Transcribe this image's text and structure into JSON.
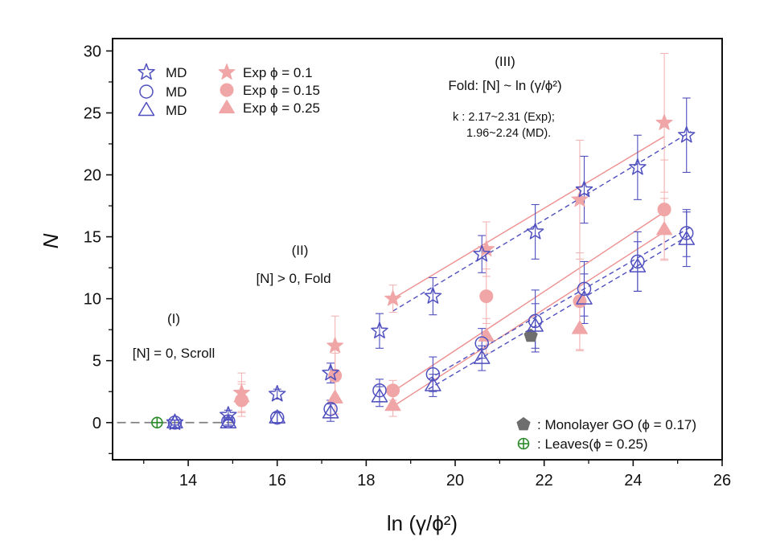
{
  "chart_data": {
    "type": "scatter",
    "xlabel": "ln (γ/ϕ²)",
    "ylabel": "N",
    "xlim": [
      12.3,
      26
    ],
    "ylim": [
      -3,
      31
    ],
    "xticks": [
      14,
      16,
      18,
      20,
      22,
      24,
      26
    ],
    "yticks": [
      0,
      5,
      10,
      15,
      20,
      25,
      30
    ],
    "colors": {
      "md": "#4f4fbf",
      "exp": "#f0a6a6",
      "go": "#6e6e6e",
      "leaves": "#2a8a2a",
      "zero": "#808080"
    },
    "legend_position": "top-left",
    "legend": {
      "md_star": "MD",
      "md_circle": "MD",
      "md_triangle": "MD",
      "exp_star": "Exp  ϕ = 0.1",
      "exp_circle": "Exp  ϕ = 0.15",
      "exp_triangle": "Exp  ϕ = 0.25",
      "monolayer": ": Monolayer GO (ϕ = 0.17)",
      "leaves": ": Leaves(ϕ = 0.25)"
    },
    "annotations": {
      "region1_title": "(I)",
      "region1_text": "[N] = 0, Scroll",
      "region2_title": "(II)",
      "region2_text": "[N] > 0, Fold",
      "region3_title": "(III)",
      "region3_text": "Fold: [N] ~ ln (γ/ϕ²)",
      "k_line1": "k : 2.17~2.31 (Exp);",
      "k_line2": "1.96~2.24 (MD)."
    },
    "series": [
      {
        "name": "MD star",
        "marker": "star",
        "filled": false,
        "x": [
          13.7,
          14.9,
          16.0,
          17.2,
          18.3,
          19.5,
          20.6,
          21.8,
          22.9,
          24.1,
          25.2
        ],
        "y": [
          0.0,
          0.6,
          2.3,
          4.0,
          7.4,
          10.2,
          13.6,
          15.4,
          18.8,
          20.6,
          23.2
        ],
        "err": [
          0.2,
          0.4,
          0.4,
          0.8,
          1.4,
          1.5,
          1.5,
          2.2,
          2.7,
          2.6,
          3.0
        ]
      },
      {
        "name": "MD circle",
        "marker": "circle",
        "filled": false,
        "x": [
          13.7,
          14.9,
          16.0,
          17.2,
          18.3,
          19.5,
          20.6,
          21.8,
          22.9,
          24.1,
          25.2
        ],
        "y": [
          0.0,
          0.1,
          0.4,
          1.1,
          2.6,
          3.9,
          6.4,
          8.2,
          10.8,
          13.0,
          15.3
        ],
        "err": [
          0.2,
          0.3,
          0.4,
          0.7,
          0.9,
          1.4,
          1.2,
          2.5,
          2.2,
          2.4,
          1.9
        ]
      },
      {
        "name": "MD triangle",
        "marker": "triangle",
        "filled": false,
        "x": [
          13.7,
          14.9,
          16.0,
          17.2,
          18.3,
          19.5,
          20.6,
          21.8,
          22.9,
          24.1,
          25.2
        ],
        "y": [
          0.0,
          0.0,
          0.4,
          0.8,
          2.1,
          3.0,
          5.2,
          7.8,
          10.0,
          12.6,
          14.8
        ],
        "err": [
          0.2,
          0.3,
          0.4,
          0.7,
          0.8,
          0.9,
          1.0,
          1.8,
          2.0,
          2.0,
          2.2
        ]
      },
      {
        "name": "Exp ϕ = 0.1",
        "marker": "star",
        "filled": true,
        "x": [
          15.2,
          17.3,
          18.6,
          20.7,
          22.8,
          24.7
        ],
        "y": [
          2.4,
          6.2,
          10.0,
          14.0,
          18.0,
          24.2
        ],
        "err": [
          1.6,
          2.4,
          1.1,
          2.2,
          4.8,
          5.6
        ]
      },
      {
        "name": "Exp ϕ = 0.15",
        "marker": "circle",
        "filled": true,
        "x": [
          15.2,
          17.3,
          18.6,
          20.7,
          22.8,
          24.7
        ],
        "y": [
          1.8,
          3.8,
          2.6,
          10.2,
          9.8,
          17.2
        ],
        "err": [
          1.3,
          1.8,
          0.8,
          2.2,
          3.9,
          4.0
        ]
      },
      {
        "name": "Exp ϕ = 0.25",
        "marker": "triangle",
        "filled": true,
        "x": [
          15.2,
          17.3,
          18.6,
          20.7,
          22.8,
          24.7
        ],
        "y": [
          2.1,
          2.0,
          1.4,
          7.0,
          7.6,
          15.6
        ],
        "err": [
          1.2,
          1.3,
          0.9,
          1.4,
          1.8,
          2.5
        ]
      },
      {
        "name": "Monolayer GO",
        "marker": "pentagon",
        "filled": true,
        "x": [
          21.7
        ],
        "y": [
          7.0
        ],
        "err": [
          0
        ]
      },
      {
        "name": "Leaves",
        "marker": "crosscircle",
        "filled": false,
        "x": [
          13.3
        ],
        "y": [
          0.0
        ],
        "err": [
          0
        ]
      }
    ],
    "fit_lines": [
      {
        "name": "Exp ϕ = 0.1 fit",
        "style": "solid",
        "x": [
          18.6,
          24.7
        ],
        "y": [
          10.0,
          23.1
        ]
      },
      {
        "name": "Exp ϕ = 0.15 fit",
        "style": "solid",
        "x": [
          18.6,
          24.7
        ],
        "y": [
          2.5,
          17.0
        ]
      },
      {
        "name": "Exp ϕ = 0.25 fit",
        "style": "solid",
        "x": [
          18.6,
          24.7
        ],
        "y": [
          1.3,
          15.4
        ]
      },
      {
        "name": "MD star fit",
        "style": "dashed",
        "x": [
          18.6,
          25.3
        ],
        "y": [
          9.0,
          23.5
        ]
      },
      {
        "name": "MD circle fit",
        "style": "dashed",
        "x": [
          19.4,
          25.3
        ],
        "y": [
          3.5,
          15.8
        ]
      },
      {
        "name": "MD triangle fit",
        "style": "dashed",
        "x": [
          19.4,
          25.3
        ],
        "y": [
          2.7,
          15.2
        ]
      },
      {
        "name": "zero line",
        "style": "longdash",
        "x": [
          12.4,
          15.1
        ],
        "y": [
          0,
          0
        ]
      }
    ]
  }
}
